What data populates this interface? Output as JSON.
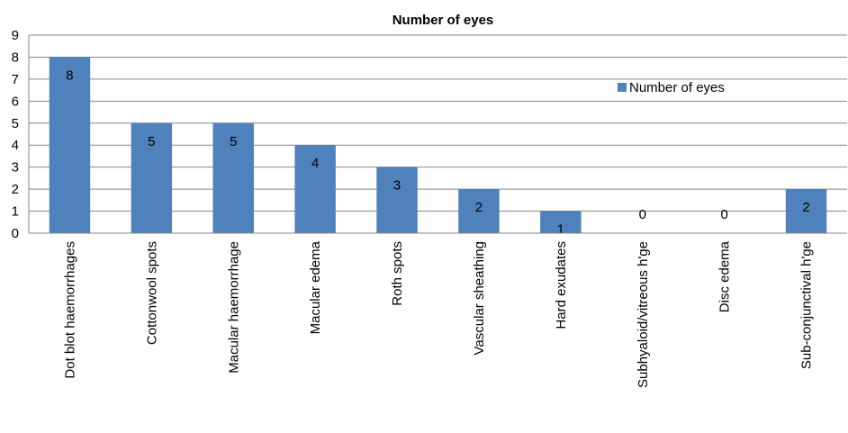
{
  "chart_data": {
    "type": "bar",
    "title": "Number of eyes",
    "categories": [
      "Dot blot haemorrhages",
      "Cottonwool spots",
      "Macular haemorrhage",
      "Macular edema",
      "Roth spots",
      "Vascular sheathing",
      "Hard exudates",
      "Subhyaloid/vitreous h'ge",
      "Disc edema",
      "Sub-conjunctival h'ge"
    ],
    "series": [
      {
        "name": "Number of eyes",
        "values": [
          8,
          5,
          5,
          4,
          3,
          2,
          1,
          0,
          0,
          2
        ],
        "color": "#4f81bd"
      }
    ],
    "ylim": [
      0,
      9
    ],
    "yticks": [
      "0",
      "1",
      "2",
      "3",
      "4",
      "5",
      "6",
      "7",
      "8",
      "9"
    ],
    "grid": true,
    "legend": "right"
  }
}
